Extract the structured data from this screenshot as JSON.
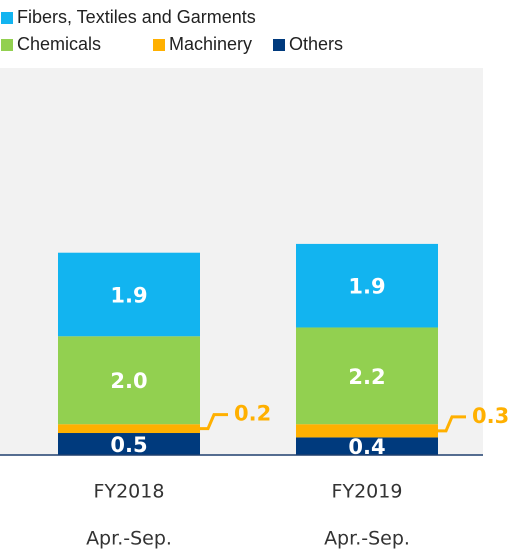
{
  "chart_data": {
    "type": "stacked_bar",
    "categories": [
      "FY2018",
      "FY2019"
    ],
    "period_labels": [
      "Apr.-Sep.",
      "Apr.-Sep."
    ],
    "series": [
      {
        "name": "Fibers, Textiles and Garments",
        "color": "#12b4f0",
        "values": [
          1.9,
          1.9
        ],
        "value_labels": [
          "1.9",
          "1.9"
        ]
      },
      {
        "name": "Chemicals",
        "color": "#92d050",
        "values": [
          2.0,
          2.2
        ],
        "value_labels": [
          "2.0",
          "2.2"
        ]
      },
      {
        "name": "Machinery",
        "color": "#ffb000",
        "values": [
          0.2,
          0.3
        ],
        "value_labels": [
          "0.2",
          "0.3"
        ]
      },
      {
        "name": "Others",
        "color": "#003a7d",
        "values": [
          0.5,
          0.4
        ],
        "value_labels": [
          "0.5",
          "0.4"
        ]
      }
    ],
    "ylim": [
      0,
      8.8
    ]
  }
}
